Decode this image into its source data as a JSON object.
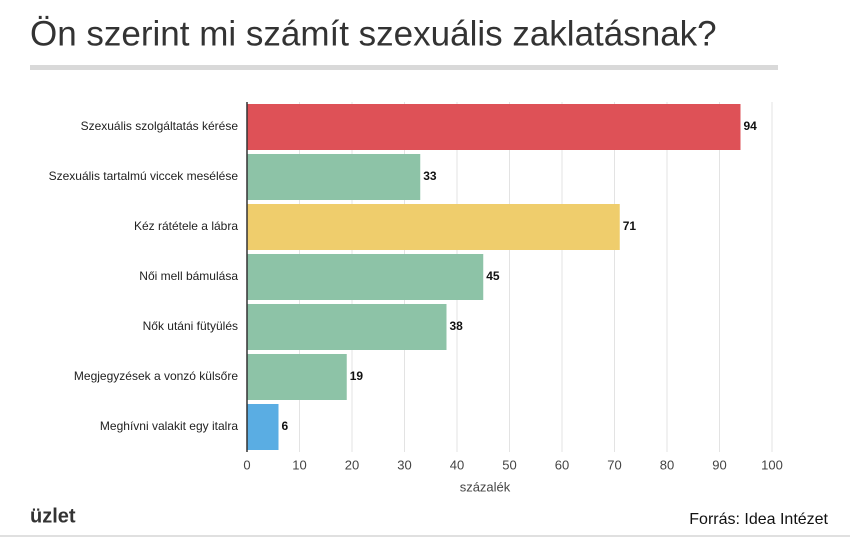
{
  "chart_data": {
    "type": "bar",
    "orientation": "horizontal",
    "title": "Ön szerint mi számít szexuális zaklatásnak?",
    "categories": [
      "Szexuális szolgáltatás kérése",
      "Szexuális tartalmú viccek mesélése",
      "Kéz rátétele a lábra",
      "Női mell bámulása",
      "Nők utáni fütyülés",
      "Megjegyzések a vonzó külsőre",
      "Meghívni valakit egy italra"
    ],
    "values": [
      94,
      33,
      71,
      45,
      38,
      19,
      6
    ],
    "colors": [
      "#de5157",
      "#8dc3a7",
      "#efcd6c",
      "#8dc3a7",
      "#8dc3a7",
      "#8dc3a7",
      "#5aade3"
    ],
    "xlim": [
      0,
      100
    ],
    "xticks": [
      0,
      10,
      20,
      30,
      40,
      50,
      60,
      70,
      80,
      90,
      100
    ],
    "xlabel": "százalék",
    "grid": true,
    "logo": "üzlet",
    "source": "Forrás: Idea Intézet"
  }
}
